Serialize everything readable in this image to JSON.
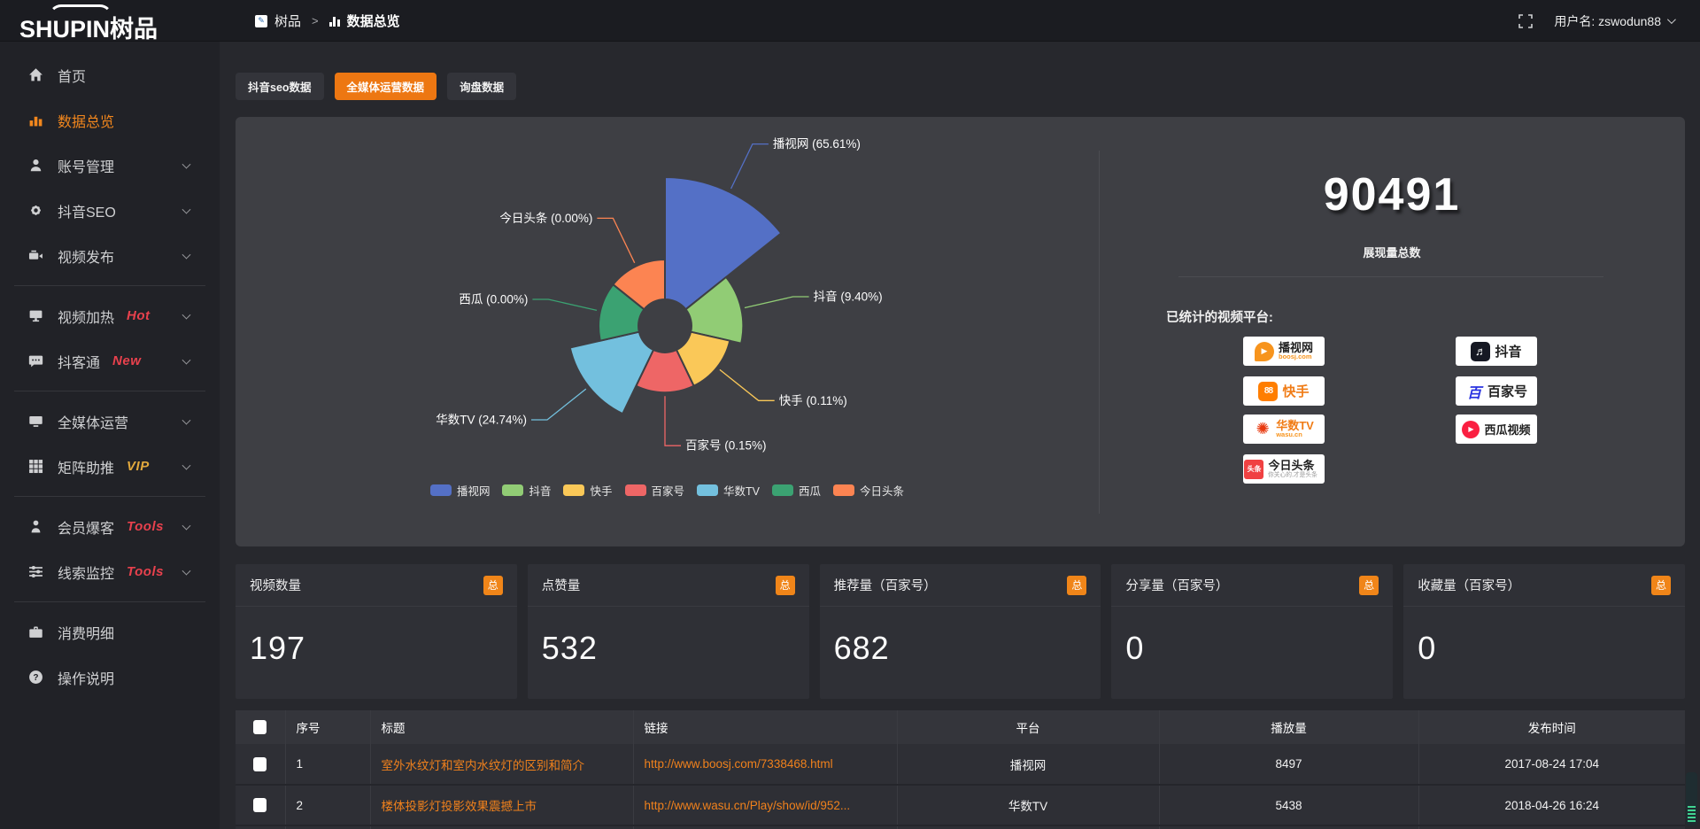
{
  "logo": {
    "en": "SHUPIN",
    "cn": "树品"
  },
  "topbar": {
    "breadcrumb_root": "树品",
    "breadcrumb_sep": ">",
    "breadcrumb_current": "数据总览",
    "username": "用户名: zswodun88"
  },
  "sidebar": {
    "items": [
      {
        "label": "首页"
      },
      {
        "label": "数据总览"
      },
      {
        "label": "账号管理"
      },
      {
        "label": "抖音SEO"
      },
      {
        "label": "视频发布"
      },
      {
        "label": "视频加热",
        "badge": "Hot"
      },
      {
        "label": "抖客通",
        "badge": "New"
      },
      {
        "label": "全媒体运营"
      },
      {
        "label": "矩阵助推",
        "badge": "VIP"
      },
      {
        "label": "会员爆客",
        "badge": "Tools"
      },
      {
        "label": "线索监控",
        "badge": "Tools"
      },
      {
        "label": "消费明细"
      },
      {
        "label": "操作说明"
      }
    ]
  },
  "tabs": [
    {
      "label": "抖音seo数据"
    },
    {
      "label": "全媒体运营数据"
    },
    {
      "label": "询盘数据"
    }
  ],
  "chart_data": {
    "type": "pie",
    "rose": true,
    "legend_position": "bottom",
    "items": [
      {
        "name": "播视网",
        "percent": 65.61,
        "label": "播视网 (65.61%)",
        "color": "#5470c6"
      },
      {
        "name": "抖音",
        "percent": 9.4,
        "label": "抖音 (9.40%)",
        "color": "#91cc75"
      },
      {
        "name": "快手",
        "percent": 0.11,
        "label": "快手 (0.11%)",
        "color": "#fac858"
      },
      {
        "name": "百家号",
        "percent": 0.15,
        "label": "百家号 (0.15%)",
        "color": "#ee6666"
      },
      {
        "name": "华数TV",
        "percent": 24.74,
        "label": "华数TV (24.74%)",
        "color": "#73c0de"
      },
      {
        "name": "西瓜",
        "percent": 0.0,
        "label": "西瓜 (0.00%)",
        "color": "#3ba272"
      },
      {
        "name": "今日头条",
        "percent": 0.0,
        "label": "今日头条 (0.00%)",
        "color": "#fc8452"
      }
    ]
  },
  "summary": {
    "total": "90491",
    "total_label": "展现量总数",
    "platforms_title": "已统计的视频平台:",
    "platforms": [
      {
        "name": "播视网",
        "sub": "boosj.com"
      },
      {
        "name": "抖音"
      },
      {
        "name": "快手"
      },
      {
        "name": "百家号"
      },
      {
        "name": "华数TV",
        "sub": "wasu.cn"
      },
      {
        "name": "西瓜视频"
      },
      {
        "name": "今日头条",
        "sub": "你关心的,才是头条"
      }
    ]
  },
  "stats": {
    "badge": "总",
    "cards": [
      {
        "label": "视频数量",
        "value": "197"
      },
      {
        "label": "点赞量",
        "value": "532"
      },
      {
        "label": "推荐量（百家号）",
        "value": "682"
      },
      {
        "label": "分享量（百家号）",
        "value": "0"
      },
      {
        "label": "收藏量（百家号）",
        "value": "0"
      }
    ]
  },
  "table": {
    "headers": [
      "序号",
      "标题",
      "链接",
      "平台",
      "播放量",
      "发布时间"
    ],
    "rows": [
      {
        "seq": "1",
        "title": "室外水纹灯和室内水纹灯的区别和简介",
        "link": "http://www.boosj.com/7338468.html",
        "platform": "播视网",
        "plays": "8497",
        "time": "2017-08-24 17:04"
      },
      {
        "seq": "2",
        "title": "楼体投影灯投影效果震撼上市",
        "link": "http://www.wasu.cn/Play/show/id/952...",
        "platform": "华数TV",
        "plays": "5438",
        "time": "2018-04-26 16:24"
      }
    ]
  },
  "colors": {
    "accent": "#ed7712",
    "link": "#f0811c",
    "badge_hot": "#e8414d",
    "badge_vip": "#e2a93d"
  }
}
